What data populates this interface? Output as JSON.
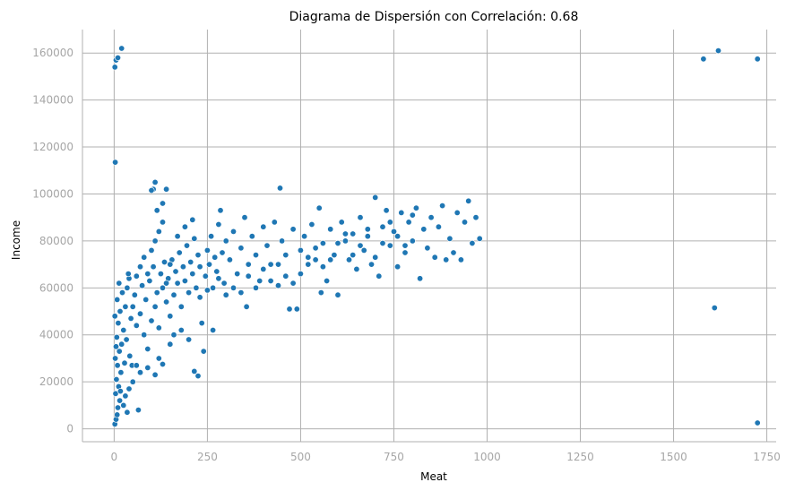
{
  "chart_data": {
    "type": "scatter",
    "title": "Diagrama de Dispersión con Correlación: 0.68",
    "xlabel": "Meat",
    "ylabel": "Income",
    "xlim": [
      -85,
      1775
    ],
    "ylim": [
      -5500,
      170000
    ],
    "xticks": [
      0,
      250,
      500,
      750,
      1000,
      1250,
      1500,
      1750
    ],
    "xtick_labels": [
      "0",
      "250",
      "500",
      "750",
      "1000",
      "1250",
      "1500",
      "1750"
    ],
    "yticks": [
      0,
      20000,
      40000,
      60000,
      80000,
      100000,
      120000,
      140000,
      160000
    ],
    "ytick_labels": [
      "0",
      "20000",
      "40000",
      "60000",
      "80000",
      "100000",
      "120000",
      "140000",
      "160000"
    ],
    "grid": true,
    "colors": {
      "point": "#1f77b4",
      "point_edge": "#ffffff",
      "grid": "#b0b0b0",
      "spine": "#b0b0b0",
      "tick_text": "#a6a6a6"
    },
    "points": [
      [
        5,
        157000
      ],
      [
        10,
        158000
      ],
      [
        20,
        162000
      ],
      [
        2,
        154000
      ],
      [
        3,
        113500
      ],
      [
        1580,
        157500
      ],
      [
        1620,
        161000
      ],
      [
        1725,
        157500
      ],
      [
        1610,
        51500
      ],
      [
        1725,
        2500
      ],
      [
        2,
        2000
      ],
      [
        5,
        4000
      ],
      [
        8,
        6000
      ],
      [
        10,
        9000
      ],
      [
        15,
        12000
      ],
      [
        4,
        15000
      ],
      [
        12,
        18000
      ],
      [
        6,
        21000
      ],
      [
        18,
        24000
      ],
      [
        9,
        27000
      ],
      [
        3,
        30000
      ],
      [
        14,
        33000
      ],
      [
        20,
        36000
      ],
      [
        7,
        39000
      ],
      [
        25,
        42000
      ],
      [
        11,
        45000
      ],
      [
        2,
        48000
      ],
      [
        16,
        50000
      ],
      [
        30,
        52000
      ],
      [
        8,
        55000
      ],
      [
        22,
        58000
      ],
      [
        35,
        60000
      ],
      [
        13,
        62000
      ],
      [
        40,
        64000
      ],
      [
        5,
        35000
      ],
      [
        28,
        28000
      ],
      [
        17,
        16000
      ],
      [
        45,
        47000
      ],
      [
        33,
        38000
      ],
      [
        50,
        52000
      ],
      [
        42,
        31000
      ],
      [
        60,
        44000
      ],
      [
        55,
        57000
      ],
      [
        38,
        66000
      ],
      [
        65,
        8000
      ],
      [
        48,
        27000
      ],
      [
        70,
        49000
      ],
      [
        75,
        61000
      ],
      [
        80,
        40000
      ],
      [
        85,
        55000
      ],
      [
        90,
        34000
      ],
      [
        95,
        63000
      ],
      [
        100,
        46000
      ],
      [
        105,
        69000
      ],
      [
        110,
        52000
      ],
      [
        115,
        58000
      ],
      [
        120,
        43000
      ],
      [
        125,
        66000
      ],
      [
        130,
        60000
      ],
      [
        135,
        71000
      ],
      [
        140,
        54000
      ],
      [
        145,
        64000
      ],
      [
        150,
        48000
      ],
      [
        155,
        72000
      ],
      [
        160,
        57000
      ],
      [
        165,
        67000
      ],
      [
        170,
        62000
      ],
      [
        175,
        75000
      ],
      [
        180,
        52000
      ],
      [
        185,
        69000
      ],
      [
        190,
        63000
      ],
      [
        195,
        78000
      ],
      [
        200,
        58000
      ],
      [
        205,
        71000
      ],
      [
        210,
        66000
      ],
      [
        215,
        81000
      ],
      [
        220,
        60000
      ],
      [
        225,
        74000
      ],
      [
        230,
        69000
      ],
      [
        235,
        45000
      ],
      [
        240,
        33000
      ],
      [
        215,
        24500
      ],
      [
        225,
        22500
      ],
      [
        110,
        23000
      ],
      [
        130,
        27500
      ],
      [
        60,
        27000
      ],
      [
        105,
        102000
      ],
      [
        100,
        101500
      ],
      [
        110,
        105000
      ],
      [
        140,
        102000
      ],
      [
        130,
        96000
      ],
      [
        115,
        93000
      ],
      [
        245,
        65000
      ],
      [
        250,
        76000
      ],
      [
        255,
        70000
      ],
      [
        260,
        82000
      ],
      [
        265,
        60000
      ],
      [
        270,
        73000
      ],
      [
        275,
        67000
      ],
      [
        280,
        87000
      ],
      [
        285,
        93000
      ],
      [
        290,
        75000
      ],
      [
        295,
        62000
      ],
      [
        300,
        80000
      ],
      [
        310,
        72000
      ],
      [
        320,
        84000
      ],
      [
        330,
        66000
      ],
      [
        340,
        77000
      ],
      [
        350,
        90000
      ],
      [
        355,
        52000
      ],
      [
        360,
        70000
      ],
      [
        370,
        82000
      ],
      [
        380,
        74000
      ],
      [
        390,
        63000
      ],
      [
        400,
        86000
      ],
      [
        410,
        78000
      ],
      [
        420,
        70000
      ],
      [
        430,
        88000
      ],
      [
        440,
        61000
      ],
      [
        445,
        102500
      ],
      [
        450,
        80000
      ],
      [
        460,
        74000
      ],
      [
        470,
        51000
      ],
      [
        480,
        85000
      ],
      [
        490,
        51000
      ],
      [
        500,
        76000
      ],
      [
        510,
        82000
      ],
      [
        520,
        70000
      ],
      [
        530,
        87000
      ],
      [
        540,
        72000
      ],
      [
        550,
        94000
      ],
      [
        555,
        58000
      ],
      [
        560,
        79000
      ],
      [
        570,
        63000
      ],
      [
        580,
        85000
      ],
      [
        590,
        74000
      ],
      [
        600,
        57000
      ],
      [
        610,
        88000
      ],
      [
        620,
        80000
      ],
      [
        630,
        72000
      ],
      [
        640,
        83000
      ],
      [
        650,
        68000
      ],
      [
        660,
        90000
      ],
      [
        670,
        76000
      ],
      [
        680,
        82000
      ],
      [
        690,
        70000
      ],
      [
        700,
        98500
      ],
      [
        710,
        65000
      ],
      [
        720,
        86000
      ],
      [
        730,
        93000
      ],
      [
        740,
        78000
      ],
      [
        750,
        84000
      ],
      [
        760,
        69000
      ],
      [
        770,
        92000
      ],
      [
        780,
        75000
      ],
      [
        790,
        88000
      ],
      [
        800,
        80000
      ],
      [
        810,
        94000
      ],
      [
        820,
        64000
      ],
      [
        830,
        85000
      ],
      [
        840,
        77000
      ],
      [
        850,
        90000
      ],
      [
        860,
        73000
      ],
      [
        870,
        86000
      ],
      [
        880,
        95000
      ],
      [
        890,
        72000
      ],
      [
        900,
        81000
      ],
      [
        910,
        75000
      ],
      [
        920,
        92000
      ],
      [
        930,
        72000
      ],
      [
        940,
        88000
      ],
      [
        950,
        97000
      ],
      [
        960,
        79000
      ],
      [
        970,
        90000
      ],
      [
        980,
        81000
      ],
      [
        200,
        38000
      ],
      [
        180,
        42000
      ],
      [
        160,
        40000
      ],
      [
        150,
        36000
      ],
      [
        120,
        30000
      ],
      [
        90,
        26000
      ],
      [
        70,
        24000
      ],
      [
        50,
        20000
      ],
      [
        40,
        17000
      ],
      [
        30,
        14000
      ],
      [
        25,
        10000
      ],
      [
        35,
        7000
      ],
      [
        60,
        65000
      ],
      [
        70,
        69000
      ],
      [
        80,
        73000
      ],
      [
        90,
        66000
      ],
      [
        100,
        76000
      ],
      [
        110,
        80000
      ],
      [
        120,
        84000
      ],
      [
        130,
        88000
      ],
      [
        140,
        62000
      ],
      [
        150,
        70000
      ],
      [
        170,
        82000
      ],
      [
        190,
        86000
      ],
      [
        210,
        89000
      ],
      [
        230,
        56000
      ],
      [
        250,
        59000
      ],
      [
        265,
        42000
      ],
      [
        280,
        64000
      ],
      [
        300,
        57000
      ],
      [
        320,
        60000
      ],
      [
        340,
        58000
      ],
      [
        360,
        65000
      ],
      [
        380,
        60000
      ],
      [
        400,
        68000
      ],
      [
        420,
        63000
      ],
      [
        440,
        70000
      ],
      [
        460,
        65000
      ],
      [
        480,
        62000
      ],
      [
        500,
        66000
      ],
      [
        520,
        73000
      ],
      [
        540,
        77000
      ],
      [
        560,
        69000
      ],
      [
        580,
        72000
      ],
      [
        600,
        79000
      ],
      [
        620,
        83000
      ],
      [
        640,
        74000
      ],
      [
        660,
        78000
      ],
      [
        680,
        85000
      ],
      [
        700,
        73000
      ],
      [
        720,
        79000
      ],
      [
        740,
        88000
      ],
      [
        760,
        82000
      ],
      [
        780,
        78000
      ],
      [
        800,
        91000
      ]
    ]
  }
}
